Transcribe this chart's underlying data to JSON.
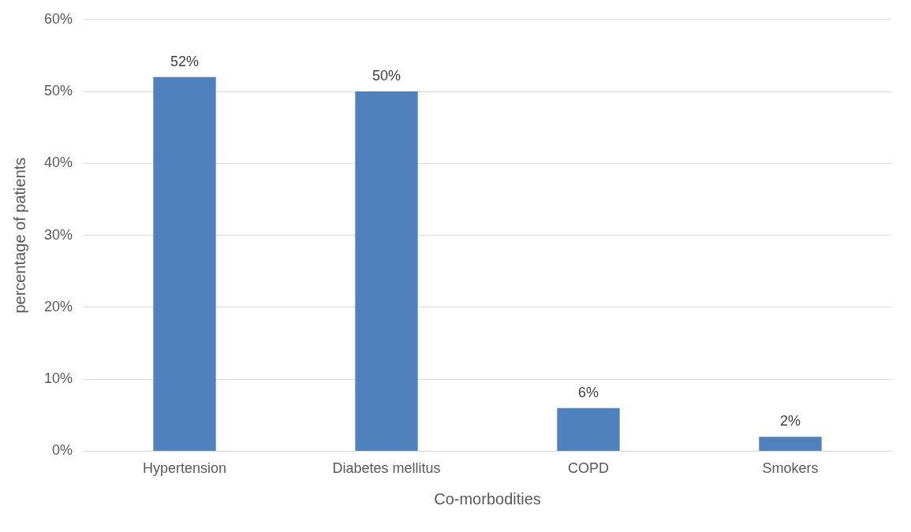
{
  "chart_data": {
    "type": "bar",
    "xlabel": "Co-morbodities",
    "ylabel": "percentage of patients",
    "categories": [
      "Hypertension",
      "Diabetes mellitus",
      "COPD",
      "Smokers"
    ],
    "values": [
      52,
      50,
      6,
      2
    ],
    "color": "#4f81bd",
    "value_labels": [
      "52%",
      "50%",
      "6%",
      "2%"
    ],
    "ylim": [
      0,
      60
    ],
    "yticks": [
      {
        "value": 0,
        "label": "0%"
      },
      {
        "value": 10,
        "label": "10%"
      },
      {
        "value": 20,
        "label": "20%"
      },
      {
        "value": 30,
        "label": "30%"
      },
      {
        "value": 40,
        "label": "40%"
      },
      {
        "value": 50,
        "label": "50%"
      },
      {
        "value": 60,
        "label": "60%"
      }
    ],
    "grid": "y",
    "legend": false
  }
}
